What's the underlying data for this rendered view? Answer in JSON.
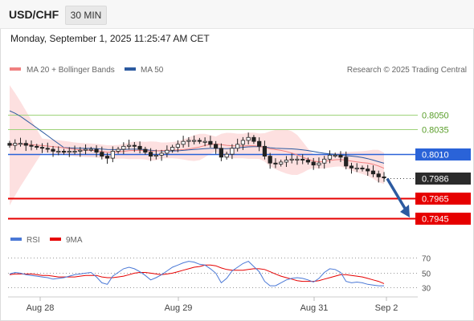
{
  "header": {
    "symbol": "USD/CHF",
    "timeframe": "30 MIN",
    "datetime": "Monday, September 1, 2025 11:25:47 AM CET"
  },
  "legend": {
    "ma20": "MA 20 + Bollinger Bands",
    "ma50": "MA 50",
    "source": "Research © 2025 Trading Central"
  },
  "colors": {
    "ma20": "#f08080",
    "ma50": "#2c5aa0",
    "bollinger_fill": "#fde0e0",
    "resistance_green": "#9fd27a",
    "pivot_blue": "#2a63d8",
    "support_red": "#e60000",
    "last_price_bg": "#2b2b2b",
    "arrow": "#2c5aa0",
    "rsi": "#4a78d6",
    "rsi_ma": "#e60000",
    "candle": "#222222"
  },
  "chart_data": [
    {
      "type": "candlestick",
      "title": "USD/CHF 30 MIN",
      "x_tick_labels": [
        "Aug 28",
        "Aug 29",
        "Aug 31",
        "Sep 2"
      ],
      "ylim": [
        0.7935,
        0.809
      ],
      "close_series_approx": [
        0.8019,
        0.8021,
        0.8021,
        0.8019,
        0.8018,
        0.8017,
        0.8016,
        0.8015,
        0.8013,
        0.8013,
        0.8012,
        0.8013,
        0.8013,
        0.8014,
        0.8015,
        0.8015,
        0.8012,
        0.8008,
        0.8006,
        0.8013,
        0.8015,
        0.8018,
        0.8019,
        0.8018,
        0.8015,
        0.8012,
        0.8008,
        0.8009,
        0.8011,
        0.8014,
        0.8017,
        0.802,
        0.8023,
        0.8024,
        0.8024,
        0.8023,
        0.8023,
        0.802,
        0.8016,
        0.8007,
        0.801,
        0.8016,
        0.802,
        0.8024,
        0.8027,
        0.8023,
        0.8018,
        0.8008,
        0.8001,
        0.8,
        0.8002,
        0.8004,
        0.8005,
        0.8005,
        0.8004,
        0.8002,
        0.7999,
        0.8001,
        0.8005,
        0.8009,
        0.8009,
        0.8007,
        0.7998,
        0.7996,
        0.7996,
        0.7995,
        0.7993,
        0.799,
        0.7987,
        0.7986
      ],
      "moving_averages": [
        {
          "name": "MA 20",
          "color": "#f08080"
        },
        {
          "name": "MA 50",
          "color": "#2c5aa0"
        }
      ],
      "levels": [
        {
          "value": "0.8050",
          "kind": "resistance"
        },
        {
          "value": "0.8035",
          "kind": "resistance"
        },
        {
          "value": "0.8010",
          "kind": "pivot"
        },
        {
          "value": "0.7986",
          "kind": "last"
        },
        {
          "value": "0.7965",
          "kind": "support"
        },
        {
          "value": "0.7945",
          "kind": "support"
        }
      ],
      "projection": {
        "from": 0.7986,
        "to": 0.7945,
        "direction": "down"
      }
    },
    {
      "type": "line",
      "title": "RSI",
      "series": [
        {
          "name": "RSI",
          "color": "#4a78d6"
        },
        {
          "name": "9MA",
          "color": "#e60000"
        }
      ],
      "yticks": [
        "70",
        "50",
        "30"
      ],
      "ylim": [
        20,
        80
      ],
      "rsi_values_approx": [
        48,
        50,
        49,
        47,
        46,
        45,
        44,
        43,
        41,
        42,
        43,
        45,
        47,
        48,
        49,
        50,
        44,
        36,
        34,
        45,
        50,
        55,
        57,
        55,
        51,
        46,
        40,
        43,
        47,
        52,
        57,
        60,
        63,
        65,
        64,
        61,
        60,
        55,
        49,
        36,
        42,
        52,
        57,
        62,
        65,
        58,
        51,
        38,
        32,
        32,
        36,
        40,
        42,
        43,
        42,
        40,
        37,
        42,
        50,
        55,
        54,
        50,
        38,
        36,
        37,
        36,
        34,
        33,
        32,
        32
      ],
      "ma9_values_approx": [
        47,
        48,
        48,
        48,
        48,
        47,
        46,
        46,
        45,
        44,
        44,
        44,
        44,
        45,
        46,
        46,
        46,
        44,
        43,
        43,
        44,
        45,
        47,
        49,
        50,
        50,
        49,
        48,
        47,
        48,
        49,
        51,
        53,
        55,
        57,
        58,
        60,
        60,
        59,
        56,
        54,
        53,
        53,
        53,
        54,
        55,
        55,
        54,
        51,
        48,
        45,
        43,
        41,
        39,
        38,
        38,
        38,
        39,
        41,
        43,
        45,
        47,
        47,
        46,
        45,
        44,
        42,
        40,
        38,
        35
      ]
    }
  ],
  "x_axis": {
    "labels": [
      "Aug 28",
      "Aug 29",
      "Aug 31",
      "Sep 2"
    ]
  }
}
